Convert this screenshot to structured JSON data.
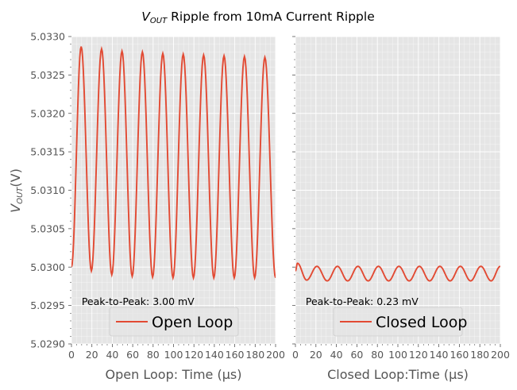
{
  "title": {
    "v": "V",
    "sub": "OUT",
    "rest": " Ripple from 10mA Current Ripple"
  },
  "ylabel": {
    "v": "V",
    "sub": "OUT",
    "rest": "(V)"
  },
  "colors": {
    "line": "#e24a33",
    "panel_bg": "#e5e5e5",
    "grid": "#ffffff",
    "text": "#555555"
  },
  "chart_data": [
    {
      "type": "line",
      "panel": "left",
      "xlabel": "Open Loop:  Time (µs)",
      "xlim": [
        0,
        200
      ],
      "ylim": [
        5.029,
        5.033
      ],
      "xticks": [
        0,
        20,
        40,
        60,
        80,
        100,
        120,
        140,
        160,
        180,
        200
      ],
      "yticks": [
        "5.0290",
        "5.0295",
        "5.0300",
        "5.0305",
        "5.0310",
        "5.0315",
        "5.0320",
        "5.0325",
        "5.0330"
      ],
      "grid": true,
      "legend": "lower center",
      "annotation": "Peak-to-Peak: 3.00 mV",
      "series": [
        {
          "name": "Open Loop",
          "peaks": [
            [
              9.5,
              5.03287
            ],
            [
              29.5,
              5.03284
            ],
            [
              49.5,
              5.03281
            ],
            [
              69.5,
              5.0328
            ],
            [
              89.5,
              5.03278
            ],
            [
              109.5,
              5.03277
            ],
            [
              129.5,
              5.03276
            ],
            [
              149.5,
              5.03275
            ],
            [
              169.5,
              5.03274
            ],
            [
              189.5,
              5.03273
            ]
          ],
          "troughs": [
            [
              0,
              5.03
            ],
            [
              19.5,
              5.02995
            ],
            [
              39.5,
              5.0299
            ],
            [
              59.5,
              5.02988
            ],
            [
              79.5,
              5.02987
            ],
            [
              99.5,
              5.02986
            ],
            [
              119.5,
              5.02986
            ],
            [
              139.5,
              5.02986
            ],
            [
              159.5,
              5.02986
            ],
            [
              179.5,
              5.02986
            ],
            [
              200,
              5.02986
            ]
          ]
        }
      ]
    },
    {
      "type": "line",
      "panel": "right",
      "xlabel": "Closed Loop:Time (µs)",
      "xlim": [
        0,
        200
      ],
      "ylim": [
        5.029,
        5.033
      ],
      "xticks": [
        0,
        20,
        40,
        60,
        80,
        100,
        120,
        140,
        160,
        180,
        200
      ],
      "grid": true,
      "legend": "lower center",
      "annotation": "Peak-to-Peak: 0.23 mV",
      "series": [
        {
          "name": "Closed Loop",
          "peaks": [
            [
              2,
              5.03005
            ],
            [
              21,
              5.03001
            ],
            [
              41,
              5.03001
            ],
            [
              61,
              5.03001
            ],
            [
              81,
              5.03001
            ],
            [
              101,
              5.03001
            ],
            [
              121,
              5.03001
            ],
            [
              141,
              5.03001
            ],
            [
              161,
              5.03001
            ],
            [
              181,
              5.03001
            ],
            [
              200,
              5.03001
            ]
          ],
          "troughs": [
            [
              0,
              5.02995
            ],
            [
              11,
              5.02983
            ],
            [
              31,
              5.02982
            ],
            [
              51,
              5.02982
            ],
            [
              71,
              5.02982
            ],
            [
              91,
              5.02982
            ],
            [
              111,
              5.02982
            ],
            [
              131,
              5.02982
            ],
            [
              151,
              5.02982
            ],
            [
              171,
              5.02982
            ],
            [
              191,
              5.02982
            ]
          ]
        }
      ]
    }
  ]
}
